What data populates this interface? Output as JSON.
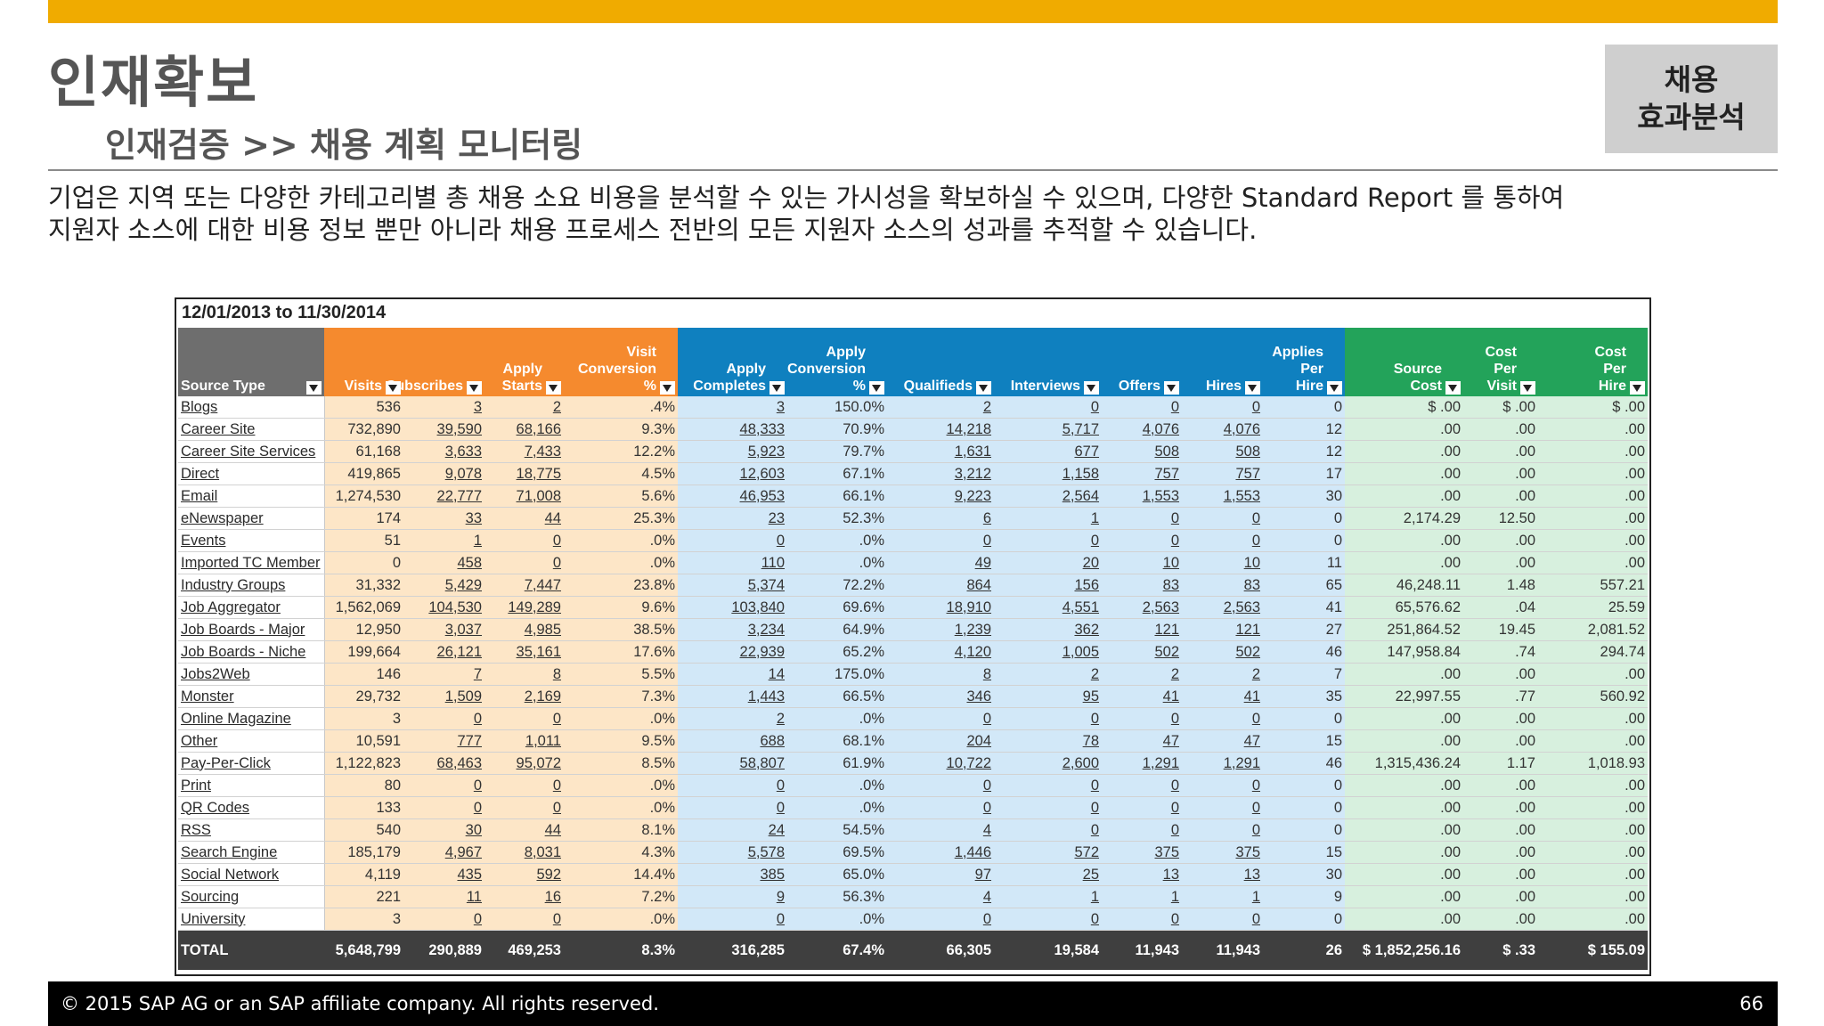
{
  "slide": {
    "title": "인재확보",
    "subtitle": "인재검증 >> 채용 계획 모니터링",
    "badge": "채용\n효과분석",
    "desc_line1": "기업은 지역 또는 다양한 카테고리별 총 채용 소요 비용을 분석할 수 있는 가시성을 확보하실 수 있으며, 다양한 Standard Report 를 통하여",
    "desc_line2": "지원자 소스에 대한 비용 정보 뿐만 아니라 채용 프로세스 전반의 모든 지원자 소스의 성과를 추적할 수 있습니다.",
    "footer_copyright": "©  2015 SAP AG or an SAP affiliate  company. All rights reserved.",
    "page_number": "66"
  },
  "report": {
    "date_range": "12/01/2013 to 11/30/2014",
    "group_colors": {
      "source": "#6e6e6e",
      "orange": "#F58A2E",
      "blue": "#0F80BF",
      "green": "#23A35A"
    },
    "columns": [
      {
        "label": "Source Type",
        "group": "source",
        "sort_icon": "dropdown-arrow-icon"
      },
      {
        "label": "Visits",
        "group": "orange",
        "sort_icon": "dropdown-arrow-icon"
      },
      {
        "label": "Subscribes",
        "group": "orange",
        "sort_icon": "dropdown-arrow-icon"
      },
      {
        "label": "Apply\nStarts",
        "group": "orange",
        "sort_icon": "dropdown-arrow-icon"
      },
      {
        "label": "Visit\nConversion\n%",
        "group": "orange",
        "sort_icon": "dropdown-arrow-icon"
      },
      {
        "label": "Apply\nCompletes",
        "group": "blue",
        "sort_icon": "dropdown-arrow-icon"
      },
      {
        "label": "Apply\nConversion\n%",
        "group": "blue",
        "sort_icon": "dropdown-arrow-icon"
      },
      {
        "label": "Qualifieds",
        "group": "blue",
        "sort_icon": "dropdown-arrow-icon"
      },
      {
        "label": "Interviews",
        "group": "blue",
        "sort_icon": "dropdown-arrow-icon"
      },
      {
        "label": "Offers",
        "group": "blue",
        "sort_icon": "dropdown-arrow-icon"
      },
      {
        "label": "Hires",
        "group": "blue",
        "sort_icon": "dropdown-arrow-icon"
      },
      {
        "label": "Applies\nPer\nHire",
        "group": "blue",
        "sort_icon": "dropdown-arrow-icon"
      },
      {
        "label": "Source\nCost",
        "group": "green",
        "sort_icon": "dropdown-arrow-icon"
      },
      {
        "label": "Cost\nPer\nVisit",
        "group": "green",
        "sort_icon": "dropdown-arrow-icon"
      },
      {
        "label": "Cost\nPer\nHire",
        "group": "green",
        "sort_icon": "dropdown-arrow-icon"
      }
    ],
    "rows": [
      [
        "Blogs",
        "536",
        "3",
        "2",
        ".4%",
        "3",
        "150.0%",
        "2",
        "0",
        "0",
        "0",
        "0",
        "$ .00",
        "$ .00",
        "$ .00"
      ],
      [
        "Career Site",
        "732,890",
        "39,590",
        "68,166",
        "9.3%",
        "48,333",
        "70.9%",
        "14,218",
        "5,717",
        "4,076",
        "4,076",
        "12",
        ".00",
        ".00",
        ".00"
      ],
      [
        "Career Site Services",
        "61,168",
        "3,633",
        "7,433",
        "12.2%",
        "5,923",
        "79.7%",
        "1,631",
        "677",
        "508",
        "508",
        "12",
        ".00",
        ".00",
        ".00"
      ],
      [
        "Direct",
        "419,865",
        "9,078",
        "18,775",
        "4.5%",
        "12,603",
        "67.1%",
        "3,212",
        "1,158",
        "757",
        "757",
        "17",
        ".00",
        ".00",
        ".00"
      ],
      [
        "Email",
        "1,274,530",
        "22,777",
        "71,008",
        "5.6%",
        "46,953",
        "66.1%",
        "9,223",
        "2,564",
        "1,553",
        "1,553",
        "30",
        ".00",
        ".00",
        ".00"
      ],
      [
        "eNewspaper",
        "174",
        "33",
        "44",
        "25.3%",
        "23",
        "52.3%",
        "6",
        "1",
        "0",
        "0",
        "0",
        "2,174.29",
        "12.50",
        ".00"
      ],
      [
        "Events",
        "51",
        "1",
        "0",
        ".0%",
        "0",
        ".0%",
        "0",
        "0",
        "0",
        "0",
        "0",
        ".00",
        ".00",
        ".00"
      ],
      [
        "Imported TC Member",
        "0",
        "458",
        "0",
        ".0%",
        "110",
        ".0%",
        "49",
        "20",
        "10",
        "10",
        "11",
        ".00",
        ".00",
        ".00"
      ],
      [
        "Industry Groups",
        "31,332",
        "5,429",
        "7,447",
        "23.8%",
        "5,374",
        "72.2%",
        "864",
        "156",
        "83",
        "83",
        "65",
        "46,248.11",
        "1.48",
        "557.21"
      ],
      [
        "Job Aggregator",
        "1,562,069",
        "104,530",
        "149,289",
        "9.6%",
        "103,840",
        "69.6%",
        "18,910",
        "4,551",
        "2,563",
        "2,563",
        "41",
        "65,576.62",
        ".04",
        "25.59"
      ],
      [
        "Job Boards - Major",
        "12,950",
        "3,037",
        "4,985",
        "38.5%",
        "3,234",
        "64.9%",
        "1,239",
        "362",
        "121",
        "121",
        "27",
        "251,864.52",
        "19.45",
        "2,081.52"
      ],
      [
        "Job Boards - Niche",
        "199,664",
        "26,121",
        "35,161",
        "17.6%",
        "22,939",
        "65.2%",
        "4,120",
        "1,005",
        "502",
        "502",
        "46",
        "147,958.84",
        ".74",
        "294.74"
      ],
      [
        "Jobs2Web",
        "146",
        "7",
        "8",
        "5.5%",
        "14",
        "175.0%",
        "8",
        "2",
        "2",
        "2",
        "7",
        ".00",
        ".00",
        ".00"
      ],
      [
        "Monster",
        "29,732",
        "1,509",
        "2,169",
        "7.3%",
        "1,443",
        "66.5%",
        "346",
        "95",
        "41",
        "41",
        "35",
        "22,997.55",
        ".77",
        "560.92"
      ],
      [
        "Online Magazine",
        "3",
        "0",
        "0",
        ".0%",
        "2",
        ".0%",
        "0",
        "0",
        "0",
        "0",
        "0",
        ".00",
        ".00",
        ".00"
      ],
      [
        "Other",
        "10,591",
        "777",
        "1,011",
        "9.5%",
        "688",
        "68.1%",
        "204",
        "78",
        "47",
        "47",
        "15",
        ".00",
        ".00",
        ".00"
      ],
      [
        "Pay-Per-Click",
        "1,122,823",
        "68,463",
        "95,072",
        "8.5%",
        "58,807",
        "61.9%",
        "10,722",
        "2,600",
        "1,291",
        "1,291",
        "46",
        "1,315,436.24",
        "1.17",
        "1,018.93"
      ],
      [
        "Print",
        "80",
        "0",
        "0",
        ".0%",
        "0",
        ".0%",
        "0",
        "0",
        "0",
        "0",
        "0",
        ".00",
        ".00",
        ".00"
      ],
      [
        "QR Codes",
        "133",
        "0",
        "0",
        ".0%",
        "0",
        ".0%",
        "0",
        "0",
        "0",
        "0",
        "0",
        ".00",
        ".00",
        ".00"
      ],
      [
        "RSS",
        "540",
        "30",
        "44",
        "8.1%",
        "24",
        "54.5%",
        "4",
        "0",
        "0",
        "0",
        "0",
        ".00",
        ".00",
        ".00"
      ],
      [
        "Search Engine",
        "185,179",
        "4,967",
        "8,031",
        "4.3%",
        "5,578",
        "69.5%",
        "1,446",
        "572",
        "375",
        "375",
        "15",
        ".00",
        ".00",
        ".00"
      ],
      [
        "Social Network",
        "4,119",
        "435",
        "592",
        "14.4%",
        "385",
        "65.0%",
        "97",
        "25",
        "13",
        "13",
        "30",
        ".00",
        ".00",
        ".00"
      ],
      [
        "Sourcing",
        "221",
        "11",
        "16",
        "7.2%",
        "9",
        "56.3%",
        "4",
        "1",
        "1",
        "1",
        "9",
        ".00",
        ".00",
        ".00"
      ],
      [
        "University",
        "3",
        "0",
        "0",
        ".0%",
        "0",
        ".0%",
        "0",
        "0",
        "0",
        "0",
        "0",
        ".00",
        ".00",
        ".00"
      ]
    ],
    "total": [
      "TOTAL",
      "5,648,799",
      "290,889",
      "469,253",
      "8.3%",
      "316,285",
      "67.4%",
      "66,305",
      "19,584",
      "11,943",
      "11,943",
      "26",
      "$\n1,852,256.16",
      "$ .33",
      "$ 155.09"
    ]
  }
}
